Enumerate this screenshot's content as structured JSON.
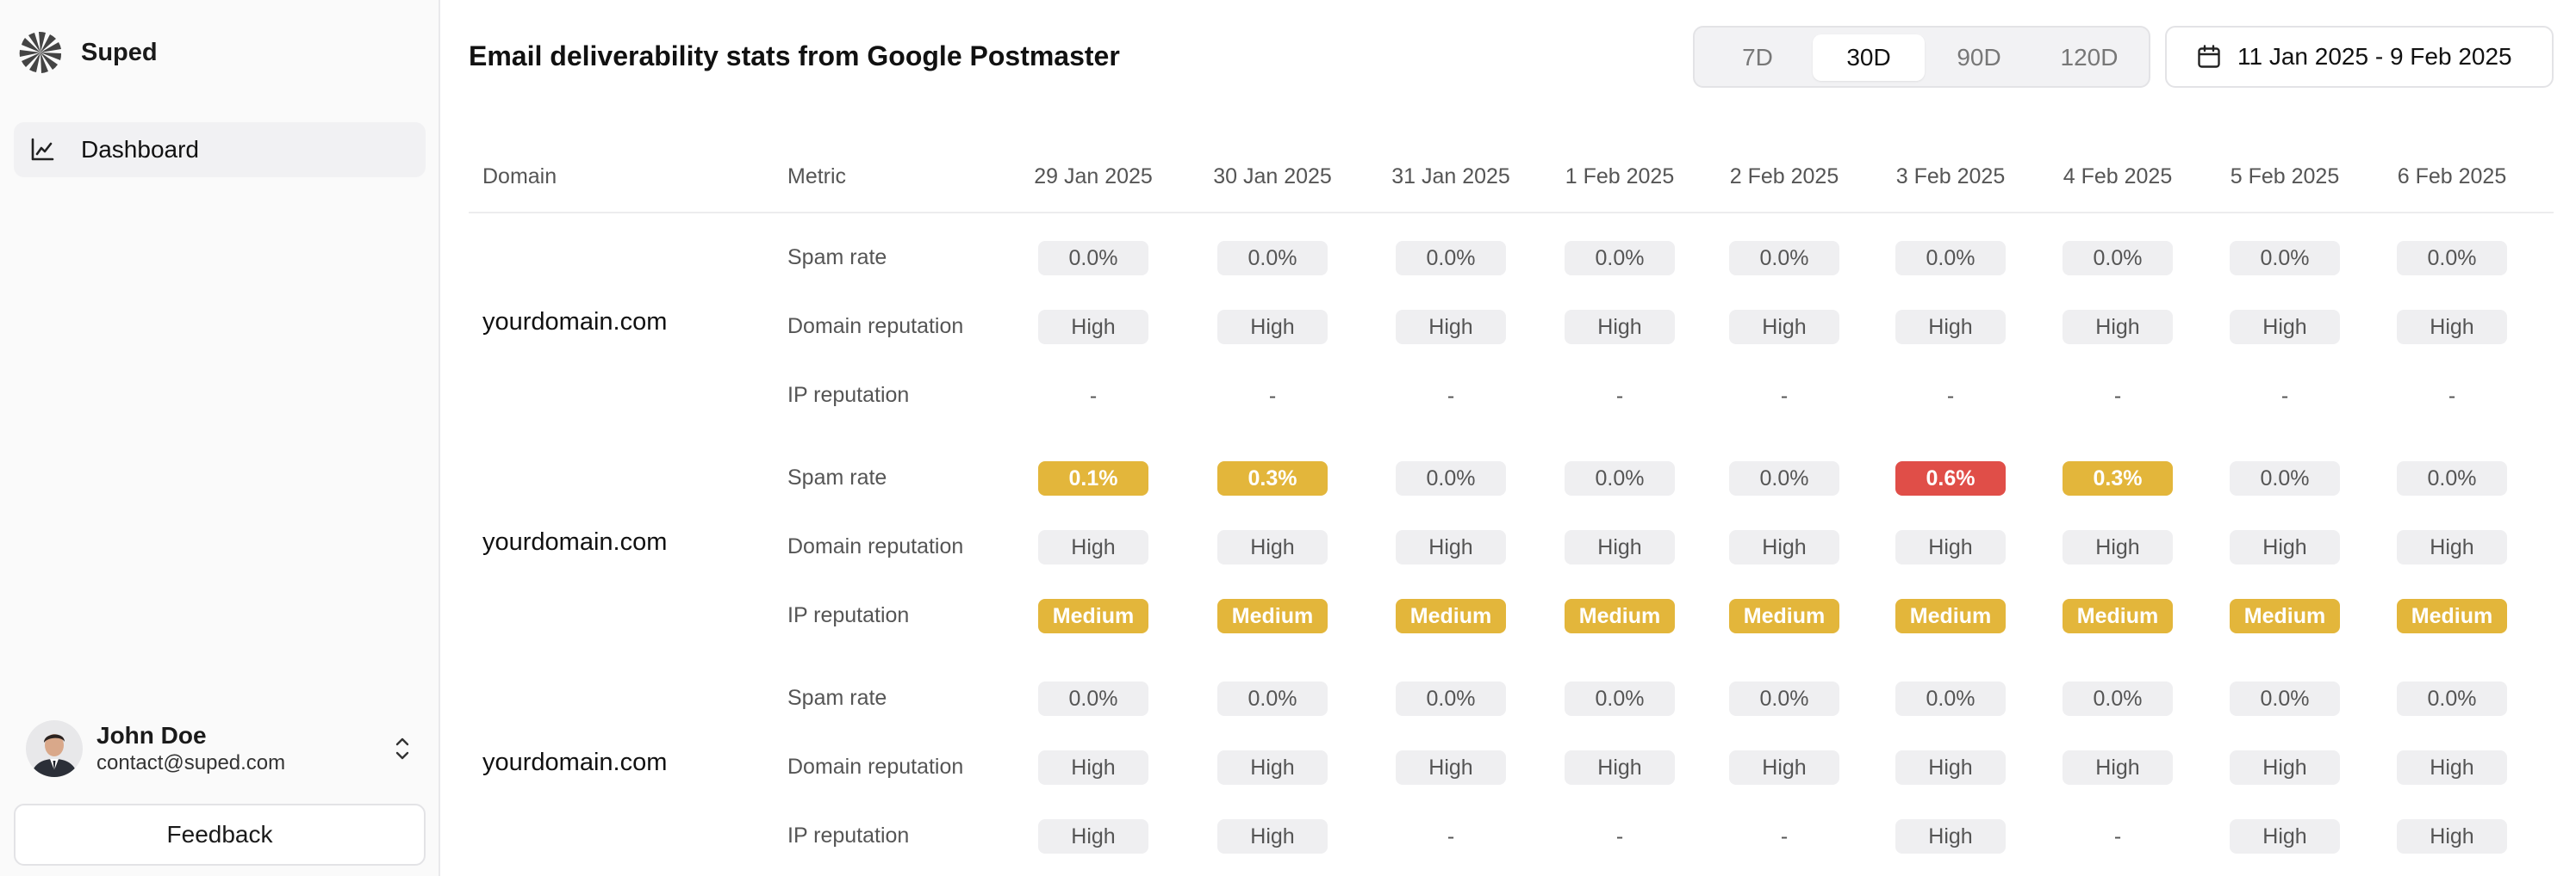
{
  "app": {
    "name": "Suped"
  },
  "nav": {
    "items": [
      {
        "label": "Dashboard",
        "icon": "chart-line-icon"
      }
    ]
  },
  "user": {
    "name": "John Doe",
    "email": "contact@suped.com"
  },
  "feedback_label": "Feedback",
  "header": {
    "title": "Email deliverability stats from Google Postmaster",
    "ranges": [
      "7D",
      "30D",
      "90D",
      "120D"
    ],
    "active_range": "30D",
    "date_range": "11 Jan 2025 - 9 Feb 2025"
  },
  "colors": {
    "warning": "#e3b63b",
    "danger": "#e04e48",
    "neutral_badge": "#efeff1"
  },
  "table": {
    "headers": {
      "domain": "Domain",
      "metric": "Metric",
      "dates": [
        "29 Jan 2025",
        "30 Jan 2025",
        "31 Jan 2025",
        "1 Feb 2025",
        "2 Feb 2025",
        "3 Feb 2025",
        "4 Feb 2025",
        "5 Feb 2025",
        "6 Feb 2025"
      ]
    },
    "groups": [
      {
        "domain": "yourdomain.com",
        "rows": [
          {
            "metric": "Spam rate",
            "values": [
              {
                "v": "0.0%",
                "s": "neutral"
              },
              {
                "v": "0.0%",
                "s": "neutral"
              },
              {
                "v": "0.0%",
                "s": "neutral"
              },
              {
                "v": "0.0%",
                "s": "neutral"
              },
              {
                "v": "0.0%",
                "s": "neutral"
              },
              {
                "v": "0.0%",
                "s": "neutral"
              },
              {
                "v": "0.0%",
                "s": "neutral"
              },
              {
                "v": "0.0%",
                "s": "neutral"
              },
              {
                "v": "0.0%",
                "s": "neutral"
              }
            ]
          },
          {
            "metric": "Domain reputation",
            "values": [
              {
                "v": "High",
                "s": "neutral"
              },
              {
                "v": "High",
                "s": "neutral"
              },
              {
                "v": "High",
                "s": "neutral"
              },
              {
                "v": "High",
                "s": "neutral"
              },
              {
                "v": "High",
                "s": "neutral"
              },
              {
                "v": "High",
                "s": "neutral"
              },
              {
                "v": "High",
                "s": "neutral"
              },
              {
                "v": "High",
                "s": "neutral"
              },
              {
                "v": "High",
                "s": "neutral"
              }
            ]
          },
          {
            "metric": "IP reputation",
            "values": [
              {
                "v": "-",
                "s": "dash"
              },
              {
                "v": "-",
                "s": "dash"
              },
              {
                "v": "-",
                "s": "dash"
              },
              {
                "v": "-",
                "s": "dash"
              },
              {
                "v": "-",
                "s": "dash"
              },
              {
                "v": "-",
                "s": "dash"
              },
              {
                "v": "-",
                "s": "dash"
              },
              {
                "v": "-",
                "s": "dash"
              },
              {
                "v": "-",
                "s": "dash"
              }
            ]
          }
        ]
      },
      {
        "domain": "yourdomain.com",
        "rows": [
          {
            "metric": "Spam rate",
            "values": [
              {
                "v": "0.1%",
                "s": "warn"
              },
              {
                "v": "0.3%",
                "s": "warn"
              },
              {
                "v": "0.0%",
                "s": "neutral"
              },
              {
                "v": "0.0%",
                "s": "neutral"
              },
              {
                "v": "0.0%",
                "s": "neutral"
              },
              {
                "v": "0.6%",
                "s": "bad"
              },
              {
                "v": "0.3%",
                "s": "warn"
              },
              {
                "v": "0.0%",
                "s": "neutral"
              },
              {
                "v": "0.0%",
                "s": "neutral"
              }
            ]
          },
          {
            "metric": "Domain reputation",
            "values": [
              {
                "v": "High",
                "s": "neutral"
              },
              {
                "v": "High",
                "s": "neutral"
              },
              {
                "v": "High",
                "s": "neutral"
              },
              {
                "v": "High",
                "s": "neutral"
              },
              {
                "v": "High",
                "s": "neutral"
              },
              {
                "v": "High",
                "s": "neutral"
              },
              {
                "v": "High",
                "s": "neutral"
              },
              {
                "v": "High",
                "s": "neutral"
              },
              {
                "v": "High",
                "s": "neutral"
              }
            ]
          },
          {
            "metric": "IP reputation",
            "values": [
              {
                "v": "Medium",
                "s": "warn"
              },
              {
                "v": "Medium",
                "s": "warn"
              },
              {
                "v": "Medium",
                "s": "warn"
              },
              {
                "v": "Medium",
                "s": "warn"
              },
              {
                "v": "Medium",
                "s": "warn"
              },
              {
                "v": "Medium",
                "s": "warn"
              },
              {
                "v": "Medium",
                "s": "warn"
              },
              {
                "v": "Medium",
                "s": "warn"
              },
              {
                "v": "Medium",
                "s": "warn"
              }
            ]
          }
        ]
      },
      {
        "domain": "yourdomain.com",
        "rows": [
          {
            "metric": "Spam rate",
            "values": [
              {
                "v": "0.0%",
                "s": "neutral"
              },
              {
                "v": "0.0%",
                "s": "neutral"
              },
              {
                "v": "0.0%",
                "s": "neutral"
              },
              {
                "v": "0.0%",
                "s": "neutral"
              },
              {
                "v": "0.0%",
                "s": "neutral"
              },
              {
                "v": "0.0%",
                "s": "neutral"
              },
              {
                "v": "0.0%",
                "s": "neutral"
              },
              {
                "v": "0.0%",
                "s": "neutral"
              },
              {
                "v": "0.0%",
                "s": "neutral"
              }
            ]
          },
          {
            "metric": "Domain reputation",
            "values": [
              {
                "v": "High",
                "s": "neutral"
              },
              {
                "v": "High",
                "s": "neutral"
              },
              {
                "v": "High",
                "s": "neutral"
              },
              {
                "v": "High",
                "s": "neutral"
              },
              {
                "v": "High",
                "s": "neutral"
              },
              {
                "v": "High",
                "s": "neutral"
              },
              {
                "v": "High",
                "s": "neutral"
              },
              {
                "v": "High",
                "s": "neutral"
              },
              {
                "v": "High",
                "s": "neutral"
              }
            ]
          },
          {
            "metric": "IP reputation",
            "values": [
              {
                "v": "High",
                "s": "neutral"
              },
              {
                "v": "High",
                "s": "neutral"
              },
              {
                "v": "-",
                "s": "dash"
              },
              {
                "v": "-",
                "s": "dash"
              },
              {
                "v": "-",
                "s": "dash"
              },
              {
                "v": "High",
                "s": "neutral"
              },
              {
                "v": "-",
                "s": "dash"
              },
              {
                "v": "High",
                "s": "neutral"
              },
              {
                "v": "High",
                "s": "neutral"
              }
            ]
          }
        ]
      }
    ]
  }
}
